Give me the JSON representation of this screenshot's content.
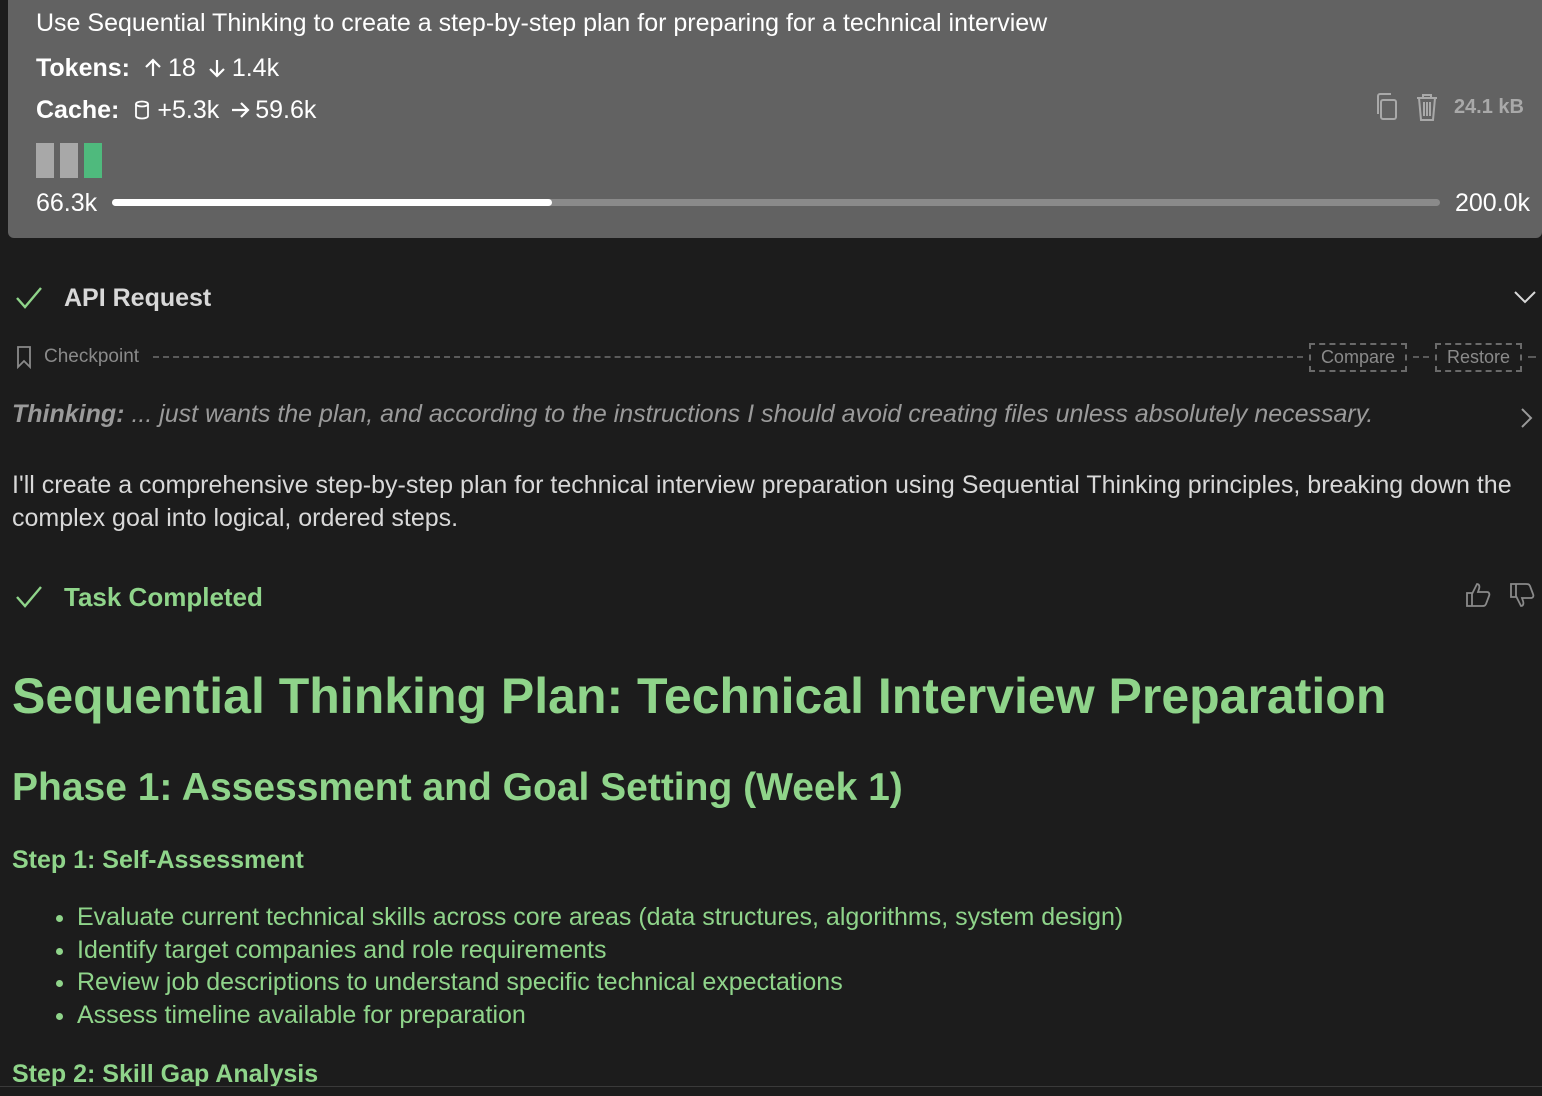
{
  "task": {
    "text": "Use Sequential Thinking to create a step-by-step plan for preparing for a technical interview",
    "tokens_label": "Tokens:",
    "tokens_in": "18",
    "tokens_out": "1.4k",
    "cache_label": "Cache:",
    "cache_write": "+5.3k",
    "cache_read": "59.6k",
    "size": "24.1 kB",
    "context_used": "66.3k",
    "context_max": "200.0k",
    "context_fraction": 0.331
  },
  "api_request": {
    "title": "API Request"
  },
  "checkpoint": {
    "label": "Checkpoint",
    "compare": "Compare",
    "restore": "Restore"
  },
  "thinking": {
    "label": "Thinking:",
    "text": "... just wants the plan, and according to the instructions I should avoid creating files unless absolutely necessary."
  },
  "response": {
    "text": "I'll create a comprehensive step-by-step plan for technical interview preparation using Sequential Thinking principles, breaking down the complex goal into logical, ordered steps."
  },
  "completion": {
    "title": "Task Completed"
  },
  "plan": {
    "title": "Sequential Thinking Plan: Technical Interview Preparation",
    "phase1": "Phase 1: Assessment and Goal Setting (Week 1)",
    "step1": "Step 1: Self-Assessment",
    "step1_items": [
      "Evaluate current technical skills across core areas (data structures, algorithms, system design)",
      "Identify target companies and role requirements",
      "Review job descriptions to understand specific technical expectations",
      "Assess timeline available for preparation"
    ],
    "step2": "Step 2: Skill Gap Analysis"
  },
  "colors": {
    "accent_green": "#8fd48a",
    "header_bg": "#626262",
    "panel_bg": "#1c1c1c",
    "context_green": "#4fba7d"
  }
}
